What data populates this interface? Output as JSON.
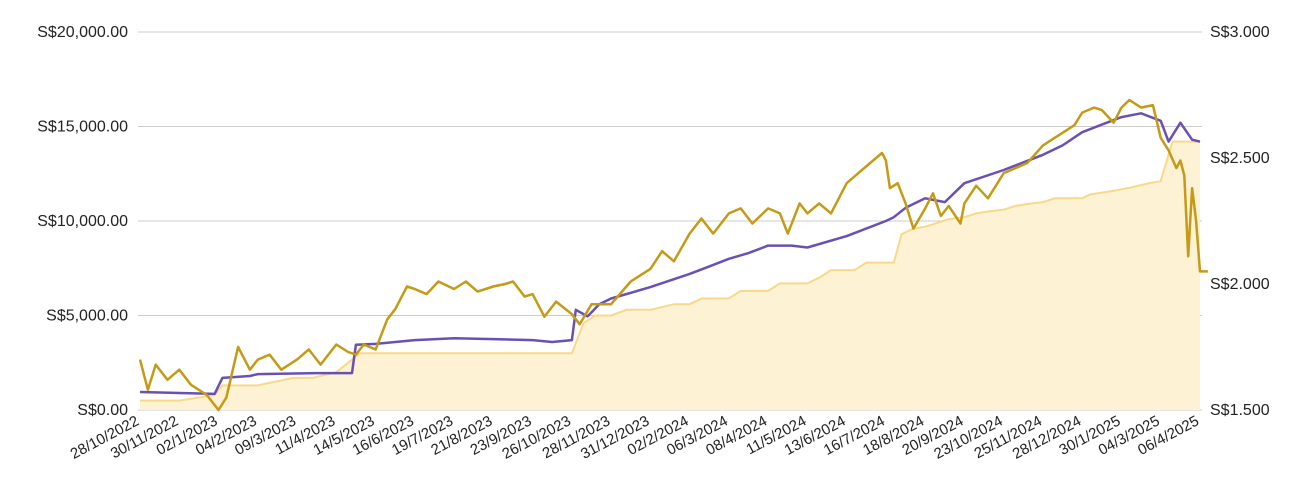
{
  "colors": {
    "grid": "#cccccc",
    "invested_fill": "#fdf2d4",
    "invested_line": "#f8d98a",
    "portfolio_line": "#6a50b4",
    "price_line": "#c49a16"
  },
  "chart_data": {
    "type": "line",
    "x_labels": [
      "28/10/2022",
      "30/11/2022",
      "02/1/2023",
      "04/2/2023",
      "09/3/2023",
      "11/4/2023",
      "14/5/2023",
      "16/6/2023",
      "19/7/2023",
      "21/8/2023",
      "23/9/2023",
      "26/10/2023",
      "28/11/2023",
      "31/12/2023",
      "02/2/2024",
      "06/3/2024",
      "08/4/2024",
      "11/5/2024",
      "13/6/2024",
      "16/7/2024",
      "18/8/2024",
      "20/9/2024",
      "23/10/2024",
      "25/11/2024",
      "28/12/2024",
      "30/1/2025",
      "04/3/2025",
      "06/4/2025"
    ],
    "y_left": {
      "ticks": [
        "S$0.00",
        "S$5,000.00",
        "S$10,000.00",
        "S$15,000.00",
        "S$20,000.00"
      ],
      "min": 0,
      "max": 20000
    },
    "y_right": {
      "ticks": [
        "S$1.500",
        "S$2.000",
        "S$2.500",
        "S$3.000"
      ],
      "min": 1.5,
      "max": 3.0
    },
    "grid": true,
    "series": [
      {
        "key": "invested",
        "type": "area",
        "axis": "left",
        "points": [
          [
            0,
            500
          ],
          [
            1,
            500
          ],
          [
            1.9,
            800
          ],
          [
            2.1,
            1300
          ],
          [
            3,
            1300
          ],
          [
            3.9,
            1700
          ],
          [
            4.4,
            1700
          ],
          [
            5,
            2000
          ],
          [
            5.6,
            3000
          ],
          [
            11,
            3000
          ],
          [
            11.3,
            4600
          ],
          [
            11.6,
            5000
          ],
          [
            12,
            5000
          ],
          [
            12.4,
            5300
          ],
          [
            13,
            5300
          ],
          [
            13.6,
            5600
          ],
          [
            14,
            5600
          ],
          [
            14.3,
            5900
          ],
          [
            15,
            5900
          ],
          [
            15.3,
            6300
          ],
          [
            16,
            6300
          ],
          [
            16.3,
            6700
          ],
          [
            17,
            6700
          ],
          [
            17.3,
            7000
          ],
          [
            17.6,
            7400
          ],
          [
            18.2,
            7400
          ],
          [
            18.5,
            7800
          ],
          [
            19.2,
            7800
          ],
          [
            19.4,
            9300
          ],
          [
            19.7,
            9600
          ],
          [
            20,
            9700
          ],
          [
            20.3,
            9900
          ],
          [
            20.6,
            10100
          ],
          [
            21,
            10200
          ],
          [
            21.3,
            10400
          ],
          [
            21.6,
            10500
          ],
          [
            22,
            10600
          ],
          [
            22.3,
            10800
          ],
          [
            22.6,
            10900
          ],
          [
            23,
            11000
          ],
          [
            23.3,
            11200
          ],
          [
            24,
            11200
          ],
          [
            24.2,
            11400
          ],
          [
            24.8,
            11600
          ],
          [
            25.3,
            11800
          ],
          [
            25.7,
            12000
          ],
          [
            26,
            12100
          ],
          [
            26.3,
            14200
          ],
          [
            27,
            14200
          ]
        ]
      },
      {
        "key": "portfolio",
        "type": "line",
        "axis": "left",
        "points": [
          [
            0,
            950
          ],
          [
            1,
            900
          ],
          [
            1.9,
            850
          ],
          [
            2.1,
            1700
          ],
          [
            2.8,
            1800
          ],
          [
            3,
            1900
          ],
          [
            4.5,
            1950
          ],
          [
            5.4,
            1950
          ],
          [
            5.5,
            3450
          ],
          [
            6,
            3500
          ],
          [
            7,
            3700
          ],
          [
            8,
            3800
          ],
          [
            9,
            3750
          ],
          [
            10,
            3700
          ],
          [
            10.5,
            3600
          ],
          [
            11,
            3700
          ],
          [
            11.1,
            5300
          ],
          [
            11.4,
            4950
          ],
          [
            11.7,
            5600
          ],
          [
            12,
            5900
          ],
          [
            13,
            6500
          ],
          [
            14,
            7200
          ],
          [
            14.5,
            7600
          ],
          [
            15,
            8000
          ],
          [
            15.5,
            8300
          ],
          [
            16,
            8700
          ],
          [
            16.6,
            8700
          ],
          [
            17,
            8600
          ],
          [
            18,
            9200
          ],
          [
            19,
            10000
          ],
          [
            19.2,
            10200
          ],
          [
            19.5,
            10700
          ],
          [
            20,
            11200
          ],
          [
            20.5,
            11000
          ],
          [
            21,
            12000
          ],
          [
            22,
            12700
          ],
          [
            23,
            13500
          ],
          [
            23.5,
            14000
          ],
          [
            24,
            14700
          ],
          [
            24.5,
            15100
          ],
          [
            25,
            15500
          ],
          [
            25.5,
            15700
          ],
          [
            26,
            15300
          ],
          [
            26.2,
            14200
          ],
          [
            26.5,
            15200
          ],
          [
            26.8,
            14300
          ],
          [
            27,
            14200
          ]
        ]
      },
      {
        "key": "price",
        "type": "line",
        "axis": "right",
        "points": [
          [
            0,
            1.7
          ],
          [
            0.2,
            1.58
          ],
          [
            0.4,
            1.68
          ],
          [
            0.7,
            1.62
          ],
          [
            1,
            1.66
          ],
          [
            1.3,
            1.6
          ],
          [
            1.7,
            1.56
          ],
          [
            2,
            1.5
          ],
          [
            2.2,
            1.55
          ],
          [
            2.5,
            1.75
          ],
          [
            2.8,
            1.66
          ],
          [
            3,
            1.7
          ],
          [
            3.3,
            1.72
          ],
          [
            3.6,
            1.66
          ],
          [
            4,
            1.7
          ],
          [
            4.3,
            1.74
          ],
          [
            4.6,
            1.68
          ],
          [
            5,
            1.76
          ],
          [
            5.3,
            1.73
          ],
          [
            5.5,
            1.72
          ],
          [
            5.7,
            1.76
          ],
          [
            6,
            1.74
          ],
          [
            6.3,
            1.86
          ],
          [
            6.5,
            1.9
          ],
          [
            6.8,
            1.99
          ],
          [
            7,
            1.98
          ],
          [
            7.3,
            1.96
          ],
          [
            7.6,
            2.01
          ],
          [
            8,
            1.98
          ],
          [
            8.3,
            2.01
          ],
          [
            8.6,
            1.97
          ],
          [
            9,
            1.99
          ],
          [
            9.3,
            2.0
          ],
          [
            9.5,
            2.01
          ],
          [
            9.8,
            1.95
          ],
          [
            10,
            1.96
          ],
          [
            10.3,
            1.87
          ],
          [
            10.6,
            1.93
          ],
          [
            11,
            1.88
          ],
          [
            11.2,
            1.84
          ],
          [
            11.5,
            1.92
          ],
          [
            12,
            1.92
          ],
          [
            12.5,
            2.01
          ],
          [
            13,
            2.06
          ],
          [
            13.3,
            2.13
          ],
          [
            13.6,
            2.09
          ],
          [
            14,
            2.2
          ],
          [
            14.3,
            2.26
          ],
          [
            14.6,
            2.2
          ],
          [
            15,
            2.28
          ],
          [
            15.3,
            2.3
          ],
          [
            15.6,
            2.24
          ],
          [
            16,
            2.3
          ],
          [
            16.3,
            2.28
          ],
          [
            16.5,
            2.2
          ],
          [
            16.8,
            2.32
          ],
          [
            17,
            2.28
          ],
          [
            17.3,
            2.32
          ],
          [
            17.6,
            2.28
          ],
          [
            18,
            2.4
          ],
          [
            18.3,
            2.44
          ],
          [
            18.6,
            2.48
          ],
          [
            18.9,
            2.52
          ],
          [
            19,
            2.49
          ],
          [
            19.1,
            2.38
          ],
          [
            19.3,
            2.4
          ],
          [
            19.5,
            2.32
          ],
          [
            19.7,
            2.22
          ],
          [
            20,
            2.3
          ],
          [
            20.2,
            2.36
          ],
          [
            20.4,
            2.27
          ],
          [
            20.6,
            2.31
          ],
          [
            20.9,
            2.24
          ],
          [
            21,
            2.32
          ],
          [
            21.3,
            2.39
          ],
          [
            21.6,
            2.34
          ],
          [
            22,
            2.44
          ],
          [
            22.3,
            2.46
          ],
          [
            22.6,
            2.48
          ],
          [
            23,
            2.55
          ],
          [
            23.3,
            2.58
          ],
          [
            23.5,
            2.6
          ],
          [
            23.8,
            2.63
          ],
          [
            24,
            2.68
          ],
          [
            24.3,
            2.7
          ],
          [
            24.5,
            2.69
          ],
          [
            24.8,
            2.64
          ],
          [
            25,
            2.7
          ],
          [
            25.2,
            2.73
          ],
          [
            25.5,
            2.7
          ],
          [
            25.8,
            2.71
          ],
          [
            26,
            2.58
          ],
          [
            26.2,
            2.53
          ],
          [
            26.4,
            2.46
          ],
          [
            26.5,
            2.49
          ],
          [
            26.6,
            2.43
          ],
          [
            26.7,
            2.11
          ],
          [
            26.8,
            2.38
          ],
          [
            26.9,
            2.25
          ],
          [
            27,
            2.05
          ],
          [
            27.2,
            2.05
          ]
        ]
      }
    ]
  }
}
